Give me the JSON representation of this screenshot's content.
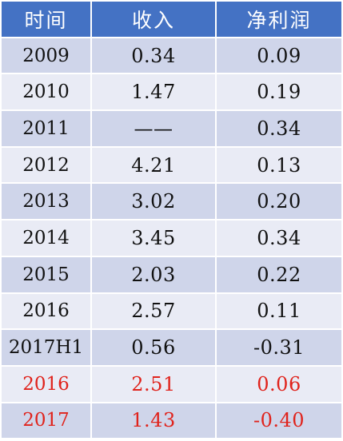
{
  "table": {
    "headers": [
      "时间",
      "收入",
      "净利润"
    ],
    "rows": [
      {
        "time": "2009",
        "revenue": "0.34",
        "profit": "0.09",
        "highlight": false
      },
      {
        "time": "2010",
        "revenue": "1.47",
        "profit": "0.19",
        "highlight": false
      },
      {
        "time": "2011",
        "revenue": "——",
        "profit": "0.34",
        "highlight": false
      },
      {
        "time": "2012",
        "revenue": "4.21",
        "profit": "0.13",
        "highlight": false
      },
      {
        "time": "2013",
        "revenue": "3.02",
        "profit": "0.20",
        "highlight": false
      },
      {
        "time": "2014",
        "revenue": "3.45",
        "profit": "0.34",
        "highlight": false
      },
      {
        "time": "2015",
        "revenue": "2.03",
        "profit": "0.22",
        "highlight": false
      },
      {
        "time": "2016",
        "revenue": "2.57",
        "profit": "0.11",
        "highlight": false
      },
      {
        "time": "2017H1",
        "revenue": "0.56",
        "profit": "-0.31",
        "highlight": false
      },
      {
        "time": "2016",
        "revenue": "2.51",
        "profit": "0.06",
        "highlight": true
      },
      {
        "time": "2017",
        "revenue": "1.43",
        "profit": "-0.40",
        "highlight": true
      }
    ]
  },
  "colors": {
    "header_bg": "#4472c4",
    "row_dark": "#cfd5ea",
    "row_light": "#e9ebf5",
    "highlight_text": "#e0231c"
  }
}
